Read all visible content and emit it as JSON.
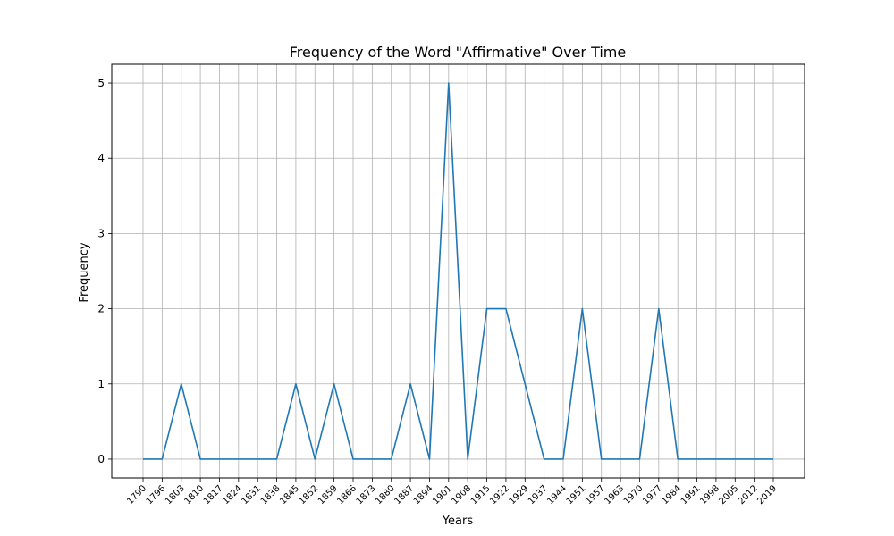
{
  "chart_data": {
    "type": "line",
    "title": "Frequency of the Word \"Affirmative\" Over Time",
    "xlabel": "Years",
    "ylabel": "Frequency",
    "categories": [
      "1790",
      "1796",
      "1803",
      "1810",
      "1817",
      "1824",
      "1831",
      "1838",
      "1845",
      "1852",
      "1859",
      "1866",
      "1873",
      "1880",
      "1887",
      "1894",
      "1901",
      "1908",
      "1915",
      "1922",
      "1929",
      "1937",
      "1944",
      "1951",
      "1957",
      "1963",
      "1970",
      "1977",
      "1984",
      "1991",
      "1998",
      "2005",
      "2012",
      "2019"
    ],
    "series": [
      {
        "values": [
          0,
          0,
          1,
          0,
          0,
          0,
          0,
          0,
          1,
          0,
          1,
          0,
          0,
          0,
          1,
          0,
          5,
          0,
          2,
          2,
          1,
          0,
          0,
          2,
          0,
          0,
          0,
          2,
          0,
          0,
          0,
          0,
          0,
          0
        ],
        "color": "#1f77b4"
      }
    ],
    "yticks": [
      0,
      1,
      2,
      3,
      4,
      5
    ],
    "ylim": [
      -0.25,
      5.25
    ],
    "grid": true
  }
}
